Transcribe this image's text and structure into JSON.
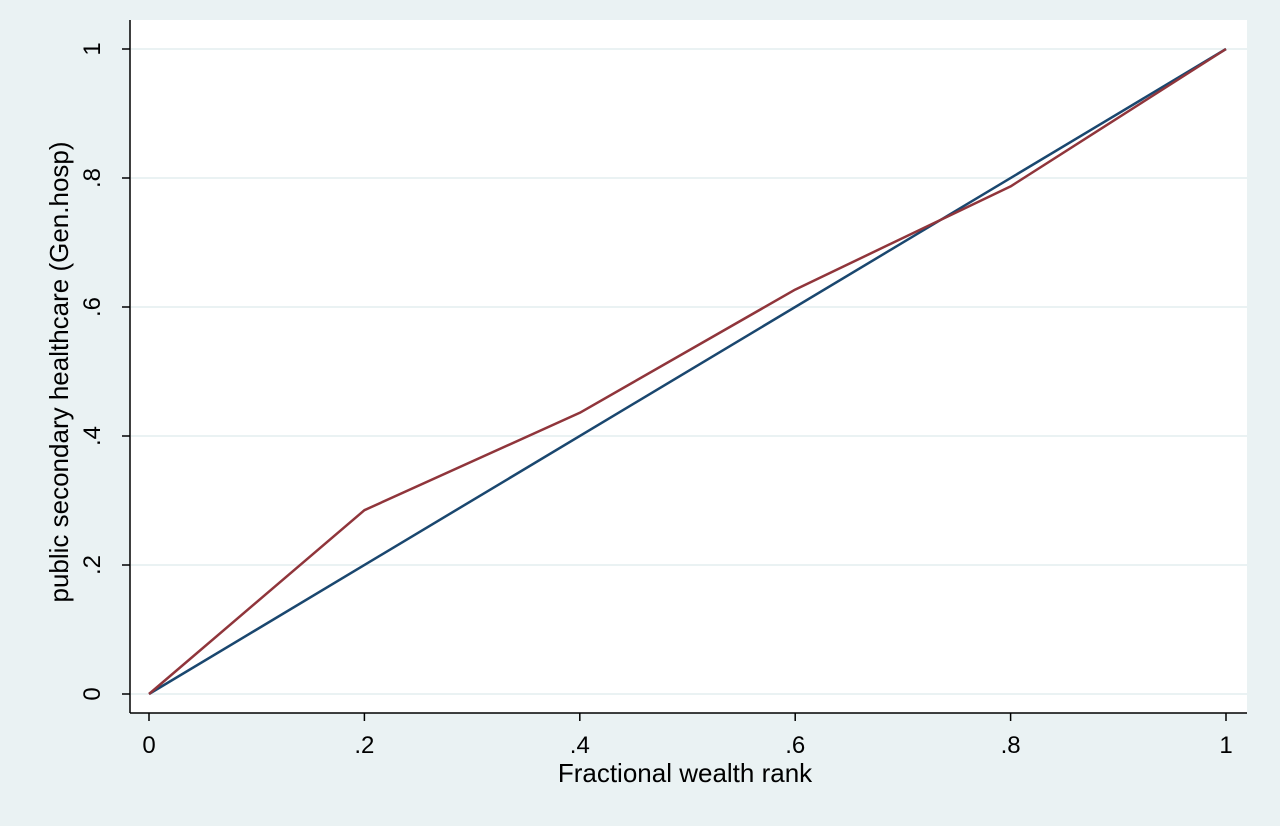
{
  "chart_data": {
    "type": "line",
    "xlabel": "Fractional wealth rank",
    "ylabel": "public secondary healthcare (Gen.hosp)",
    "xlim": [
      0,
      1
    ],
    "ylim": [
      0,
      1
    ],
    "x_ticks": [
      0,
      0.2,
      0.4,
      0.6,
      0.8,
      1
    ],
    "x_tick_labels": [
      "0",
      ".2",
      ".4",
      ".6",
      ".8",
      "1"
    ],
    "y_ticks": [
      0,
      0.2,
      0.4,
      0.6,
      0.8,
      1
    ],
    "y_tick_labels": [
      "0",
      ".2",
      ".4",
      ".6",
      ".8",
      "1"
    ],
    "grid": "horizontal",
    "series": [
      {
        "color": "#1a476f",
        "x": [
          0,
          1
        ],
        "y": [
          0,
          1
        ]
      },
      {
        "color": "#90353b",
        "x": [
          0,
          0.2,
          0.4,
          0.6,
          0.8,
          1
        ],
        "y": [
          0,
          0.285,
          0.436,
          0.627,
          0.787,
          1
        ]
      }
    ],
    "colors": {
      "background": "#eaf2f3",
      "plot_background": "#ffffff",
      "grid": "#eaf2f3",
      "axis": "#000000"
    }
  }
}
